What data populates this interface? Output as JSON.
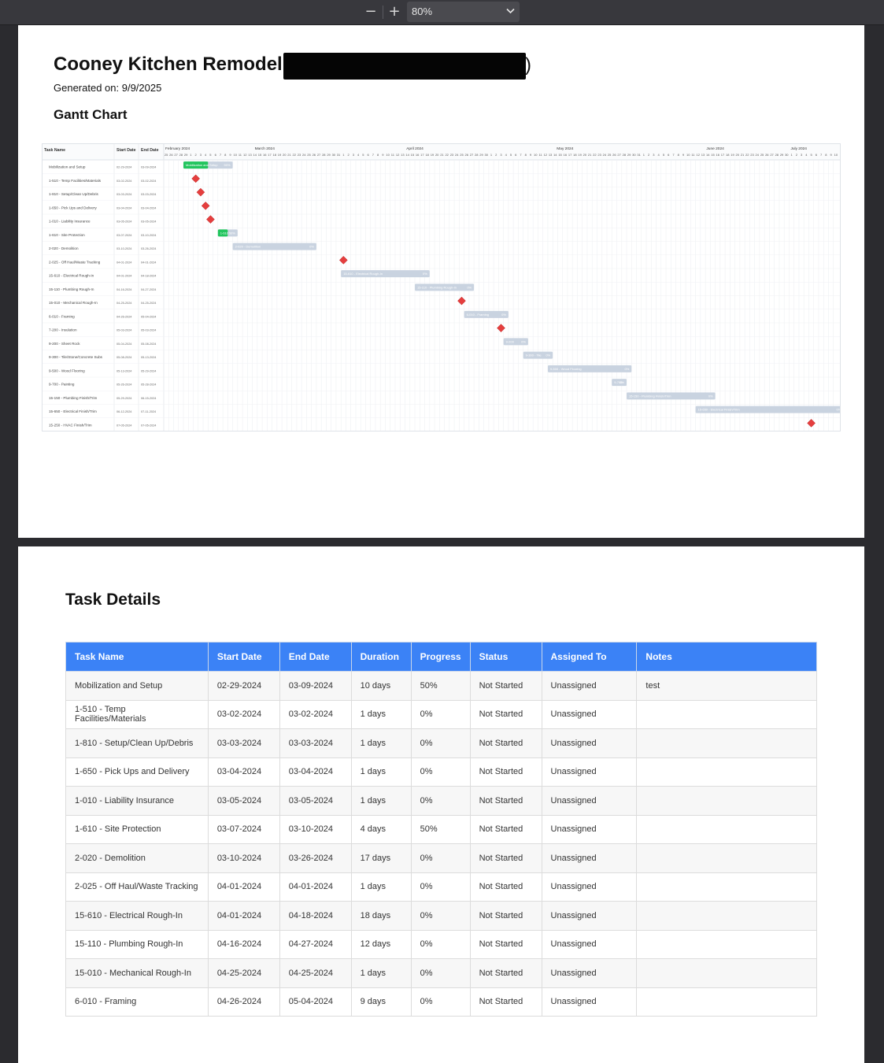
{
  "viewer": {
    "zoom_out_icon": "minus-icon",
    "zoom_in_icon": "plus-icon",
    "zoom_value": "80%"
  },
  "document": {
    "title": "Cooney Kitchen Remodel",
    "title_suffix": ")",
    "generated_on": "Generated on: 9/9/2025",
    "gantt_heading": "Gantt Chart",
    "details_heading": "Task Details"
  },
  "colors": {
    "header_blue": "#3b82f6",
    "bar_green": "#22c55e",
    "bar_gray": "#c9d3e0",
    "milestone_red": "#e53e3e"
  },
  "chart_data": {
    "type": "gantt",
    "columns": [
      "Task Name",
      "Start Date",
      "End Date"
    ],
    "month_labels": [
      "February 2024",
      "March 2024",
      "April 2024",
      "May 2024",
      "June 2024",
      "July 2024"
    ],
    "timeline_start": "2024-02-25",
    "timeline_end": "2024-07-10",
    "tasks": [
      {
        "name": "Mobilization and Setup",
        "start": "02-29-2024",
        "end": "03-09-2024",
        "bar_label": "Mobilization and Setup",
        "progress": 50,
        "milestone": false
      },
      {
        "name": "1-510 - Temp Facilities/Materials",
        "start": "03-02-2024",
        "end": "03-02-2024",
        "bar_label": "",
        "progress": 0,
        "milestone": true
      },
      {
        "name": "1-810 - Setup/Clean Up/Debris",
        "start": "03-03-2024",
        "end": "03-03-2024",
        "bar_label": "",
        "progress": 0,
        "milestone": true
      },
      {
        "name": "1-650 - Pick Ups and Delivery",
        "start": "03-04-2024",
        "end": "03-04-2024",
        "bar_label": "",
        "progress": 0,
        "milestone": true
      },
      {
        "name": "1-010 - Liability Insurance",
        "start": "03-05-2024",
        "end": "03-05-2024",
        "bar_label": "",
        "progress": 0,
        "milestone": true
      },
      {
        "name": "1-610 - Site Protection",
        "start": "03-07-2024",
        "end": "03-10-2024",
        "bar_label": "1-610",
        "progress": 50,
        "milestone": false
      },
      {
        "name": "2-020 - Demolition",
        "start": "03-10-2024",
        "end": "03-26-2024",
        "bar_label": "2-020 - Demolition",
        "progress": 0,
        "milestone": false
      },
      {
        "name": "2-025 - Off Haul/Waste Tracking",
        "start": "04-01-2024",
        "end": "04-01-2024",
        "bar_label": "",
        "progress": 0,
        "milestone": true
      },
      {
        "name": "15-610 - Electrical Rough-In",
        "start": "04-01-2024",
        "end": "04-18-2024",
        "bar_label": "15-610 - Electrical Rough-In",
        "progress": 0,
        "milestone": false
      },
      {
        "name": "15-110 - Plumbing Rough-In",
        "start": "04-16-2024",
        "end": "04-27-2024",
        "bar_label": "15-110 - Plumbing Rough-In",
        "progress": 0,
        "milestone": false
      },
      {
        "name": "15-010 - Mechanical Rough-In",
        "start": "04-25-2024",
        "end": "04-25-2024",
        "bar_label": "",
        "progress": 0,
        "milestone": true
      },
      {
        "name": "6-010 - Framing",
        "start": "04-26-2024",
        "end": "05-04-2024",
        "bar_label": "6-010 - Framing",
        "progress": 0,
        "milestone": false
      },
      {
        "name": "7-200 - Insulation",
        "start": "05-03-2024",
        "end": "05-03-2024",
        "bar_label": "",
        "progress": 0,
        "milestone": true
      },
      {
        "name": "9-200 - Sheet Rock",
        "start": "05-04-2024",
        "end": "05-08-2024",
        "bar_label": "9-200",
        "progress": 0,
        "milestone": false
      },
      {
        "name": "9-300 - Tile/Stone/Concrete Subs",
        "start": "05-08-2024",
        "end": "05-13-2024",
        "bar_label": "9-300 - Tile",
        "progress": 0,
        "milestone": false
      },
      {
        "name": "9-500 - Wood Flooring",
        "start": "05-13-2024",
        "end": "05-29-2024",
        "bar_label": "9-500 - Wood Flooring",
        "progress": 0,
        "milestone": false
      },
      {
        "name": "9-700 - Painting",
        "start": "05-26-2024",
        "end": "05-28-2024",
        "bar_label": "9-700",
        "progress": 0,
        "milestone": false
      },
      {
        "name": "15-150 - Plumbing Finish/Trim",
        "start": "05-29-2024",
        "end": "06-15-2024",
        "bar_label": "15-150 - Plumbing Finish/Trim",
        "progress": 0,
        "milestone": false
      },
      {
        "name": "15-650 - Electrical Finish/Trim",
        "start": "06-12-2024",
        "end": "07-11-2024",
        "bar_label": "15-650 - Electrical Finish/Trim",
        "progress": 0,
        "milestone": false
      },
      {
        "name": "15-250 - HVAC Finish/Trim",
        "start": "07-05-2024",
        "end": "07-05-2024",
        "bar_label": "",
        "progress": 0,
        "milestone": true
      }
    ]
  },
  "table": {
    "headers": [
      "Task Name",
      "Start Date",
      "End Date",
      "Duration",
      "Progress",
      "Status",
      "Assigned To",
      "Notes"
    ],
    "rows": [
      [
        "Mobilization and Setup",
        "02-29-2024",
        "03-09-2024",
        "10 days",
        "50%",
        "Not Started",
        "Unassigned",
        "test"
      ],
      [
        "1-510 - Temp Facilities/Materials",
        "03-02-2024",
        "03-02-2024",
        "1 days",
        "0%",
        "Not Started",
        "Unassigned",
        ""
      ],
      [
        "1-810 - Setup/Clean Up/Debris",
        "03-03-2024",
        "03-03-2024",
        "1 days",
        "0%",
        "Not Started",
        "Unassigned",
        ""
      ],
      [
        "1-650 - Pick Ups and Delivery",
        "03-04-2024",
        "03-04-2024",
        "1 days",
        "0%",
        "Not Started",
        "Unassigned",
        ""
      ],
      [
        "1-010 - Liability Insurance",
        "03-05-2024",
        "03-05-2024",
        "1 days",
        "0%",
        "Not Started",
        "Unassigned",
        ""
      ],
      [
        "1-610 - Site Protection",
        "03-07-2024",
        "03-10-2024",
        "4 days",
        "50%",
        "Not Started",
        "Unassigned",
        ""
      ],
      [
        "2-020 - Demolition",
        "03-10-2024",
        "03-26-2024",
        "17 days",
        "0%",
        "Not Started",
        "Unassigned",
        ""
      ],
      [
        "2-025 - Off Haul/Waste Tracking",
        "04-01-2024",
        "04-01-2024",
        "1 days",
        "0%",
        "Not Started",
        "Unassigned",
        ""
      ],
      [
        "15-610 - Electrical Rough-In",
        "04-01-2024",
        "04-18-2024",
        "18 days",
        "0%",
        "Not Started",
        "Unassigned",
        ""
      ],
      [
        "15-110 - Plumbing Rough-In",
        "04-16-2024",
        "04-27-2024",
        "12 days",
        "0%",
        "Not Started",
        "Unassigned",
        ""
      ],
      [
        "15-010 - Mechanical Rough-In",
        "04-25-2024",
        "04-25-2024",
        "1 days",
        "0%",
        "Not Started",
        "Unassigned",
        ""
      ],
      [
        "6-010 - Framing",
        "04-26-2024",
        "05-04-2024",
        "9 days",
        "0%",
        "Not Started",
        "Unassigned",
        ""
      ]
    ]
  }
}
